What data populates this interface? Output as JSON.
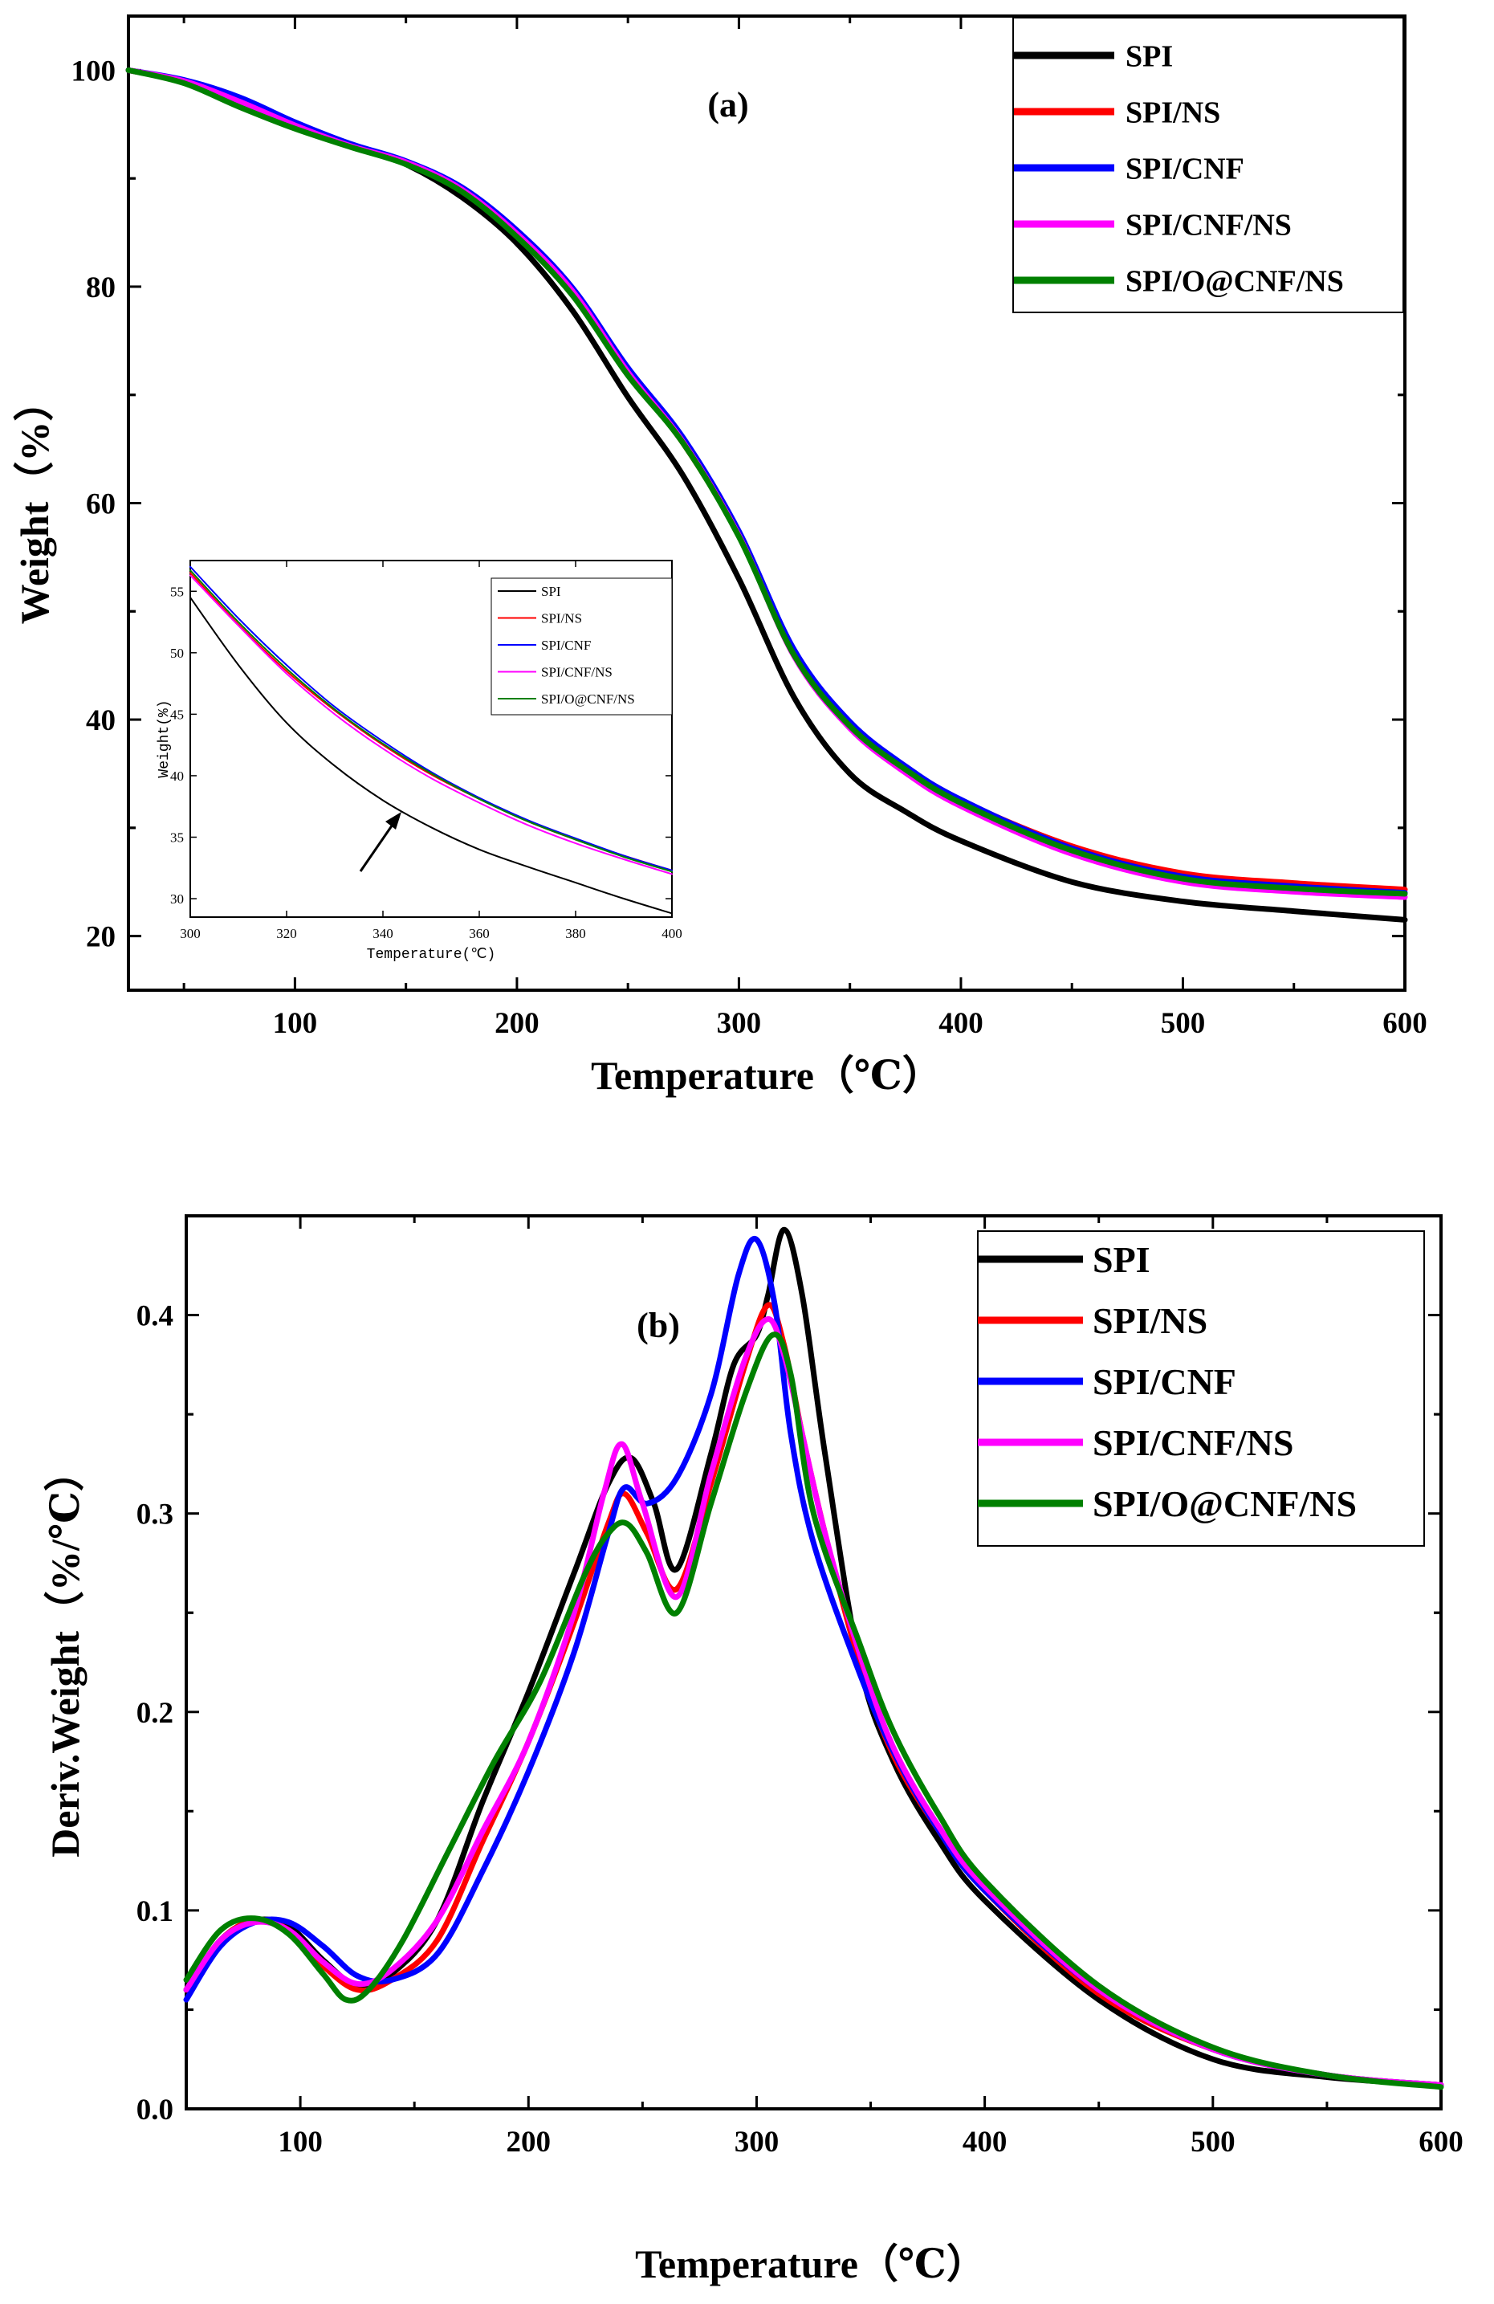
{
  "chart_data": [
    {
      "id": "a",
      "type": "line",
      "panel_label": "(a)",
      "xlabel": "Temperature（℃）",
      "ylabel": "Weight（%）",
      "xlim": [
        25,
        600
      ],
      "ylim": [
        15,
        105
      ],
      "xticks": [
        100,
        200,
        300,
        400,
        500,
        600
      ],
      "yticks": [
        20,
        40,
        60,
        80,
        100
      ],
      "legend_position": "top-right",
      "series": [
        {
          "name": "SPI",
          "color": "#000000",
          "x": [
            25,
            50,
            75,
            100,
            125,
            150,
            175,
            200,
            225,
            250,
            275,
            300,
            325,
            350,
            375,
            400,
            450,
            500,
            550,
            600
          ],
          "y": [
            100,
            98.9,
            96.8,
            94.7,
            93.1,
            91.3,
            88.3,
            84.0,
            77.8,
            69.8,
            62.5,
            53.0,
            42.0,
            35.0,
            31.5,
            28.8,
            25.0,
            23.2,
            22.3,
            21.5
          ]
        },
        {
          "name": "SPI/NS",
          "color": "#ff0000",
          "x": [
            25,
            50,
            75,
            100,
            125,
            150,
            175,
            200,
            225,
            250,
            275,
            300,
            325,
            350,
            375,
            400,
            450,
            500,
            550,
            600
          ],
          "y": [
            100,
            99.0,
            97.3,
            95.0,
            93.1,
            91.4,
            88.9,
            84.8,
            79.5,
            72.0,
            65.5,
            57.0,
            46.0,
            39.5,
            35.5,
            32.5,
            28.3,
            25.8,
            24.9,
            24.3
          ]
        },
        {
          "name": "SPI/CNF",
          "color": "#0000ff",
          "x": [
            25,
            50,
            75,
            100,
            125,
            150,
            175,
            200,
            225,
            250,
            275,
            300,
            325,
            350,
            375,
            400,
            450,
            500,
            550,
            600
          ],
          "y": [
            100,
            99.1,
            97.5,
            95.2,
            93.2,
            91.6,
            89.2,
            85.2,
            79.9,
            72.5,
            66.0,
            57.4,
            46.4,
            39.8,
            35.7,
            32.6,
            28.1,
            25.5,
            24.6,
            24.0
          ]
        },
        {
          "name": "SPI/CNF/NS",
          "color": "#ff00ff",
          "x": [
            25,
            50,
            75,
            100,
            125,
            150,
            175,
            200,
            225,
            250,
            275,
            300,
            325,
            350,
            375,
            400,
            450,
            500,
            550,
            600
          ],
          "y": [
            100,
            99.0,
            97.1,
            94.9,
            93.0,
            91.5,
            89.0,
            84.9,
            79.6,
            72.1,
            65.6,
            57.0,
            45.8,
            39.2,
            35.1,
            32.0,
            27.6,
            25.0,
            24.1,
            23.6
          ]
        },
        {
          "name": "SPI/O@CNF/NS",
          "color": "#008000",
          "x": [
            25,
            50,
            75,
            100,
            125,
            150,
            175,
            200,
            225,
            250,
            275,
            300,
            325,
            350,
            375,
            400,
            450,
            500,
            550,
            600
          ],
          "y": [
            100,
            98.8,
            96.6,
            94.6,
            92.9,
            91.3,
            88.8,
            84.6,
            79.2,
            71.8,
            65.5,
            56.9,
            45.9,
            39.4,
            35.4,
            32.3,
            27.9,
            25.3,
            24.4,
            23.9
          ]
        }
      ],
      "inset": {
        "type": "line",
        "xlabel": "Temperature(℃)",
        "ylabel": "Weight(%)",
        "xlim": [
          300,
          400
        ],
        "ylim": [
          28.5,
          57.5
        ],
        "xticks": [
          300,
          320,
          340,
          360,
          380,
          400
        ],
        "yticks": [
          30,
          35,
          40,
          45,
          50,
          55
        ],
        "legend": [
          "SPI",
          "SPI/NS",
          "SPI/CNF",
          "SPI/CNF/NS",
          "SPI/O@CNF/NS"
        ],
        "series": [
          {
            "name": "SPI",
            "color": "#000000",
            "x": [
              300,
              310,
              320,
              330,
              340,
              350,
              360,
              370,
              380,
              390,
              400
            ],
            "y": [
              54.5,
              49.0,
              44.3,
              40.8,
              38.0,
              35.8,
              34.0,
              32.6,
              31.3,
              30.0,
              28.8
            ]
          },
          {
            "name": "SPI/NS",
            "color": "#ff0000",
            "x": [
              300,
              310,
              320,
              330,
              340,
              350,
              360,
              370,
              380,
              390,
              400
            ],
            "y": [
              56.5,
              52.3,
              48.5,
              45.3,
              42.5,
              40.1,
              38.1,
              36.3,
              34.8,
              33.5,
              32.3
            ]
          },
          {
            "name": "SPI/CNF",
            "color": "#0000ff",
            "x": [
              300,
              310,
              320,
              330,
              340,
              350,
              360,
              370,
              380,
              390,
              400
            ],
            "y": [
              57.0,
              52.8,
              49.0,
              45.6,
              42.8,
              40.3,
              38.2,
              36.4,
              34.9,
              33.5,
              32.3
            ]
          },
          {
            "name": "SPI/CNF/NS",
            "color": "#ff00ff",
            "x": [
              300,
              310,
              320,
              330,
              340,
              350,
              360,
              370,
              380,
              390,
              400
            ],
            "y": [
              56.3,
              52.2,
              48.3,
              45.0,
              42.2,
              39.8,
              37.8,
              36.0,
              34.5,
              33.2,
              32.0
            ]
          },
          {
            "name": "SPI/O@CNF/NS",
            "color": "#008000",
            "x": [
              300,
              310,
              320,
              330,
              340,
              350,
              360,
              370,
              380,
              390,
              400
            ],
            "y": [
              56.7,
              52.5,
              48.7,
              45.4,
              42.6,
              40.2,
              38.1,
              36.3,
              34.8,
              33.4,
              32.2
            ]
          }
        ],
        "annotation": "arrow pointing to SPI curve"
      }
    },
    {
      "id": "b",
      "type": "line",
      "panel_label": "(b)",
      "xlabel": "Temperature（℃）",
      "ylabel": "Deriv.Weight（%/℃）",
      "xlim": [
        50,
        600
      ],
      "ylim": [
        0,
        0.45
      ],
      "xticks": [
        100,
        200,
        300,
        400,
        500,
        600
      ],
      "yticks": [
        0.0,
        0.1,
        0.2,
        0.3,
        0.4
      ],
      "legend_position": "top-right",
      "series": [
        {
          "name": "SPI",
          "color": "#000000",
          "x": [
            50,
            65,
            80,
            95,
            110,
            125,
            140,
            160,
            180,
            200,
            220,
            235,
            245,
            255,
            265,
            280,
            290,
            300,
            305,
            312,
            320,
            330,
            345,
            360,
            380,
            400,
            450,
            500,
            550,
            600
          ],
          "y": [
            0.06,
            0.085,
            0.095,
            0.092,
            0.075,
            0.062,
            0.068,
            0.095,
            0.155,
            0.21,
            0.27,
            0.315,
            0.328,
            0.305,
            0.272,
            0.33,
            0.375,
            0.39,
            0.41,
            0.443,
            0.41,
            0.33,
            0.225,
            0.175,
            0.135,
            0.105,
            0.055,
            0.025,
            0.016,
            0.012
          ]
        },
        {
          "name": "SPI/NS",
          "color": "#ff0000",
          "x": [
            50,
            65,
            80,
            95,
            110,
            125,
            140,
            160,
            180,
            200,
            220,
            235,
            242,
            252,
            265,
            280,
            295,
            305,
            312,
            320,
            330,
            345,
            360,
            380,
            400,
            450,
            500,
            550,
            600
          ],
          "y": [
            0.06,
            0.085,
            0.095,
            0.09,
            0.072,
            0.06,
            0.065,
            0.085,
            0.135,
            0.185,
            0.245,
            0.295,
            0.31,
            0.29,
            0.262,
            0.315,
            0.375,
            0.405,
            0.385,
            0.34,
            0.29,
            0.225,
            0.178,
            0.14,
            0.11,
            0.058,
            0.03,
            0.017,
            0.012
          ]
        },
        {
          "name": "SPI/CNF",
          "color": "#0000ff",
          "x": [
            50,
            65,
            80,
            95,
            110,
            125,
            140,
            160,
            180,
            200,
            220,
            235,
            242,
            252,
            265,
            280,
            292,
            300,
            308,
            315,
            325,
            345,
            360,
            380,
            400,
            450,
            500,
            550,
            600
          ],
          "y": [
            0.055,
            0.082,
            0.094,
            0.094,
            0.082,
            0.067,
            0.065,
            0.078,
            0.12,
            0.17,
            0.23,
            0.29,
            0.313,
            0.305,
            0.318,
            0.36,
            0.42,
            0.438,
            0.405,
            0.34,
            0.285,
            0.22,
            0.18,
            0.14,
            0.11,
            0.06,
            0.03,
            0.017,
            0.012
          ]
        },
        {
          "name": "SPI/CNF/NS",
          "color": "#ff00ff",
          "x": [
            50,
            65,
            80,
            95,
            110,
            125,
            140,
            160,
            180,
            200,
            220,
            233,
            241,
            250,
            265,
            280,
            295,
            305,
            312,
            320,
            330,
            345,
            360,
            380,
            400,
            450,
            500,
            550,
            600
          ],
          "y": [
            0.06,
            0.085,
            0.094,
            0.09,
            0.074,
            0.063,
            0.07,
            0.095,
            0.14,
            0.185,
            0.25,
            0.31,
            0.335,
            0.305,
            0.258,
            0.32,
            0.378,
            0.398,
            0.38,
            0.34,
            0.29,
            0.23,
            0.182,
            0.142,
            0.112,
            0.06,
            0.03,
            0.017,
            0.012
          ]
        },
        {
          "name": "SPI/O@CNF/NS",
          "color": "#008000",
          "x": [
            50,
            65,
            80,
            95,
            110,
            120,
            130,
            145,
            165,
            185,
            205,
            225,
            235,
            243,
            252,
            265,
            280,
            295,
            307,
            315,
            325,
            345,
            360,
            380,
            400,
            450,
            500,
            550,
            600
          ],
          "y": [
            0.065,
            0.09,
            0.096,
            0.088,
            0.068,
            0.055,
            0.06,
            0.085,
            0.13,
            0.175,
            0.215,
            0.27,
            0.29,
            0.295,
            0.28,
            0.25,
            0.305,
            0.36,
            0.39,
            0.37,
            0.3,
            0.235,
            0.19,
            0.148,
            0.115,
            0.062,
            0.031,
            0.017,
            0.011
          ]
        }
      ]
    }
  ]
}
